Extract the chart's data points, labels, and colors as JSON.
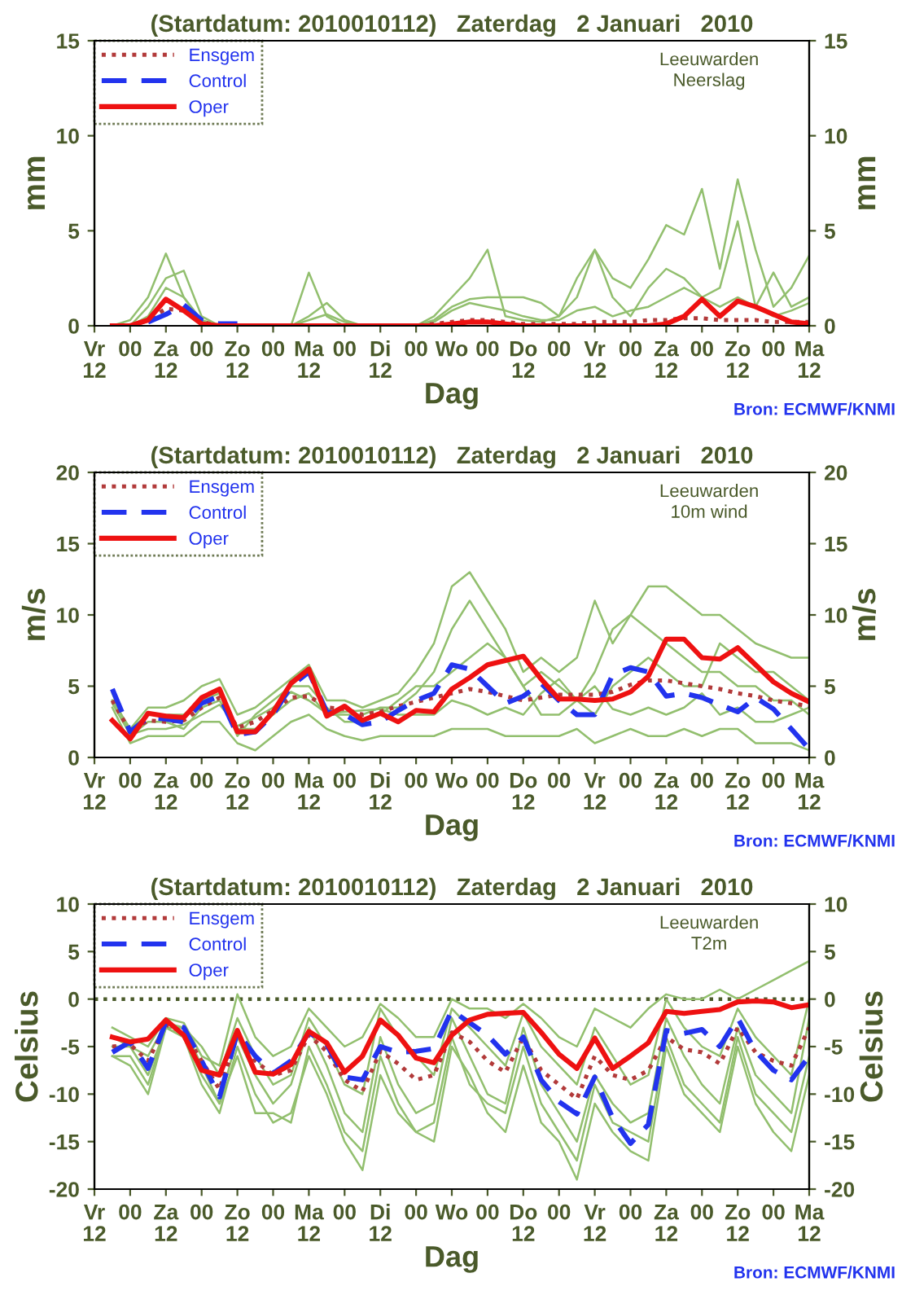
{
  "chart_data": [
    {
      "type": "line",
      "title": "(Startdatum: 2010010112)   Zaterdag   2 Januari   2010",
      "xlabel": "Dag",
      "ylabel": "mm",
      "y2label": "mm",
      "annotations": [
        "Leeuwarden\nNeerslag",
        "Bron: ECMWF/KNMI"
      ],
      "ylim": [
        0,
        15
      ],
      "yticks": [
        0,
        5,
        10,
        15
      ],
      "y2lim": [
        0,
        15
      ],
      "y2ticks": [
        0,
        5,
        10,
        15
      ],
      "categories": [
        "Vr\n12",
        null,
        "00",
        null,
        "Za\n12",
        null,
        "00",
        null,
        "Zo\n12",
        null,
        "00",
        null,
        "Ma\n12",
        null,
        "00",
        null,
        "Di\n12",
        null,
        "00",
        null,
        "Wo",
        null,
        "00",
        null,
        "Do\n12",
        null,
        "00",
        null,
        "Vr\n12",
        null,
        "00",
        null,
        "Za\n12",
        null,
        "00",
        null,
        "Zo\n12",
        null,
        "00",
        null,
        "Ma\n12"
      ],
      "legend": "top left",
      "grid": false,
      "series": [
        {
          "color": "#92bf6e",
          "line_style": "solid",
          "values": [
            null,
            0,
            0.3,
            1.5,
            3.8,
            1.5,
            0.2,
            0,
            0,
            0,
            0,
            0,
            2.8,
            0.5,
            0,
            0,
            0,
            0,
            0,
            0.5,
            1.5,
            2.5,
            4,
            0.5,
            0.3,
            0.2,
            0.5,
            2.5,
            4,
            2.5,
            2,
            3.5,
            5.3,
            4.8,
            7.2,
            3,
            7.7,
            4,
            1,
            2,
            3.7
          ]
        },
        {
          "color": "#92bf6e",
          "line_style": "solid",
          "values": [
            null,
            0,
            0,
            1,
            2.5,
            2.9,
            0.5,
            0,
            0,
            0,
            0,
            0,
            0.5,
            1.2,
            0.3,
            0,
            0,
            0,
            0,
            0.3,
            1,
            1.4,
            1.5,
            1.5,
            1.5,
            1.2,
            0.5,
            1.5,
            4,
            1.5,
            0.5,
            2,
            3,
            2.5,
            1.5,
            2,
            5.5,
            1,
            2.8,
            1,
            1.5
          ]
        },
        {
          "color": "#92bf6e",
          "line_style": "solid",
          "values": [
            null,
            0,
            0,
            0.5,
            2,
            1.5,
            0.3,
            0,
            0,
            0,
            0,
            0,
            0.3,
            0.6,
            0.2,
            0,
            0,
            0,
            0,
            0.2,
            0.8,
            1.2,
            1,
            0.8,
            0.5,
            0.3,
            0.3,
            0.8,
            1,
            0.5,
            0.8,
            1,
            1.5,
            2,
            1.5,
            1,
            1.5,
            1,
            0.5,
            0.8,
            1.2
          ]
        },
        {
          "name": "Ensgem",
          "color": "#b23a3a",
          "line_style": "dotted",
          "values": [
            null,
            0,
            0,
            0.3,
            0.9,
            0.8,
            0.2,
            0,
            0,
            0,
            0,
            0,
            0,
            0,
            0,
            0,
            0,
            0,
            0,
            0.1,
            0.2,
            0.3,
            0.3,
            0.2,
            0.1,
            0.1,
            0.1,
            0.1,
            0.2,
            0.2,
            0.2,
            0.3,
            0.3,
            0.4,
            0.4,
            0.3,
            0.3,
            0.3,
            0.2,
            0.2,
            0.2
          ]
        },
        {
          "name": "Control",
          "color": "#2233ee",
          "line_style": "dashed",
          "values": [
            null,
            null,
            null,
            0.2,
            0.6,
            1.1,
            0.3,
            0.1,
            0.1,
            null,
            null,
            null,
            null,
            null,
            null,
            null,
            null,
            null,
            null,
            null,
            null,
            null,
            null,
            null,
            null,
            null,
            null,
            null,
            null,
            null,
            null,
            null,
            null,
            null,
            null,
            null,
            null,
            null,
            null,
            null,
            null
          ]
        },
        {
          "name": "Oper",
          "color": "#ee1111",
          "line_style": "solid",
          "values": [
            null,
            0,
            0,
            0.3,
            1.4,
            0.8,
            0.1,
            0,
            0,
            0,
            0,
            0,
            0,
            0,
            0,
            0,
            0,
            0,
            0,
            0,
            0.1,
            0.2,
            0.2,
            0.1,
            0,
            0,
            0,
            0,
            0,
            0,
            0,
            0,
            0.1,
            0.5,
            1.4,
            0.5,
            1.3,
            1,
            0.6,
            0.2,
            0.1
          ]
        }
      ]
    },
    {
      "type": "line",
      "title": "(Startdatum: 2010010112)   Zaterdag   2 Januari   2010",
      "xlabel": "Dag",
      "ylabel": "m/s",
      "y2label": "m/s",
      "annotations": [
        "Leeuwarden\n10m wind",
        "Bron: ECMWF/KNMI"
      ],
      "ylim": [
        0,
        20
      ],
      "yticks": [
        0,
        5,
        10,
        15,
        20
      ],
      "y2lim": [
        0,
        20
      ],
      "y2ticks": [
        0,
        5,
        10,
        15,
        20
      ],
      "categories": [
        "Vr\n12",
        null,
        "00",
        null,
        "Za\n12",
        null,
        "00",
        null,
        "Zo\n12",
        null,
        "00",
        null,
        "Ma\n12",
        null,
        "00",
        null,
        "Di\n12",
        null,
        "00",
        null,
        "Wo",
        null,
        "00",
        null,
        "Do\n12",
        null,
        "00",
        null,
        "Vr\n12",
        null,
        "00",
        null,
        "Za\n12",
        null,
        "00",
        null,
        "Zo\n12",
        null,
        "00",
        null,
        "Ma\n12"
      ],
      "legend": "top left",
      "grid": false,
      "series": [
        {
          "color": "#92bf6e",
          "line_style": "solid",
          "values": [
            null,
            4,
            2,
            3.5,
            3.5,
            4,
            5,
            5.5,
            3,
            3.5,
            4.5,
            5.5,
            6.5,
            4,
            4,
            3.5,
            4,
            4.5,
            6,
            8,
            12,
            13,
            11,
            9,
            6,
            7,
            6,
            7,
            11,
            8,
            10,
            12,
            12,
            11,
            10,
            10,
            9,
            8,
            7.5,
            7,
            7
          ]
        },
        {
          "color": "#92bf6e",
          "line_style": "solid",
          "values": [
            null,
            3.5,
            1,
            1.5,
            1.5,
            1.5,
            2.5,
            2.5,
            1,
            0.5,
            1.5,
            2.5,
            3,
            2,
            1.5,
            1.2,
            1.5,
            1.5,
            1.5,
            1.5,
            2,
            2,
            2,
            1.5,
            1.5,
            1.5,
            1.5,
            2,
            1,
            1.5,
            2,
            1.5,
            1.5,
            2,
            1.5,
            2,
            2,
            1,
            1,
            1,
            0.5
          ]
        },
        {
          "color": "#92bf6e",
          "line_style": "solid",
          "values": [
            null,
            4.5,
            1.5,
            2.5,
            2.5,
            2,
            3.5,
            4,
            2,
            2,
            3,
            4,
            4.5,
            3,
            3,
            3,
            3.5,
            3.5,
            4.5,
            6,
            9,
            11,
            9,
            7,
            5,
            6,
            5,
            4,
            6,
            9,
            10,
            9,
            8,
            7,
            6,
            6,
            5,
            5,
            4,
            4,
            3
          ]
        },
        {
          "color": "#92bf6e",
          "line_style": "solid",
          "values": [
            null,
            4,
            2,
            3,
            3,
            3,
            4,
            4.5,
            1.5,
            3,
            4,
            5,
            5,
            3.5,
            2.5,
            2.5,
            3,
            4,
            5,
            5,
            6,
            7,
            8,
            7,
            5,
            3,
            3,
            4,
            3,
            5,
            6,
            7,
            6,
            5,
            5,
            8,
            7,
            6,
            6,
            5,
            4
          ]
        },
        {
          "color": "#92bf6e",
          "line_style": "solid",
          "values": [
            null,
            3.8,
            1.6,
            2,
            2,
            2.3,
            3,
            3.7,
            2.2,
            2.8,
            3.5,
            4.6,
            4,
            3.1,
            3.2,
            3.3,
            3.4,
            3,
            3,
            3,
            4,
            3.6,
            3,
            3.5,
            3,
            4.5,
            5.5,
            4,
            5,
            3.4,
            3,
            3.5,
            3,
            3.5,
            4.5,
            3,
            3.5,
            2.5,
            2.5,
            3,
            3.5
          ]
        },
        {
          "name": "Ensgem",
          "color": "#b23a3a",
          "line_style": "dotted",
          "values": [
            null,
            4,
            1.8,
            2.6,
            2.5,
            2.6,
            3.5,
            4.2,
            2.1,
            2.5,
            3.3,
            4.2,
            4.3,
            3.5,
            3.4,
            3,
            3.2,
            3.6,
            3.9,
            4.2,
            4.5,
            4.8,
            4.6,
            4.3,
            4,
            4.2,
            4.4,
            4.4,
            4.4,
            4.6,
            5.1,
            5.4,
            5.4,
            5.2,
            5,
            4.8,
            4.5,
            4.3,
            4,
            3.8,
            3.6
          ]
        },
        {
          "name": "Control",
          "color": "#2233ee",
          "line_style": "dashed",
          "values": [
            null,
            4.8,
            1.8,
            2.8,
            2.7,
            2.5,
            3.8,
            4.3,
            1.6,
            1.8,
            3,
            5,
            6,
            3.2,
            3,
            2.3,
            2.5,
            3.3,
            4,
            4.5,
            6.5,
            6.2,
            5,
            3.8,
            4.3,
            5.2,
            4,
            3,
            3,
            5.8,
            6.3,
            6,
            4.3,
            4.5,
            4.2,
            3.7,
            3.2,
            4.2,
            3.4,
            2,
            0.6
          ]
        },
        {
          "name": "Oper",
          "color": "#ee1111",
          "line_style": "solid",
          "values": [
            null,
            2.6,
            1.3,
            3.1,
            2.9,
            2.8,
            4.2,
            4.8,
            1.8,
            1.8,
            3.2,
            5.2,
            6.2,
            2.9,
            3.6,
            2.6,
            3.1,
            2.5,
            3.3,
            3.2,
            4.8,
            5.6,
            6.5,
            6.8,
            7.1,
            5.5,
            4.1,
            4.1,
            4,
            4.1,
            4.6,
            5.7,
            8.3,
            8.3,
            7,
            6.9,
            7.7,
            6.5,
            5.3,
            4.5,
            3.9
          ]
        }
      ]
    },
    {
      "type": "line",
      "title": "(Startdatum: 2010010112)   Zaterdag   2 Januari   2010",
      "xlabel": "Dag",
      "ylabel": "Celsius",
      "y2label": "Celsius",
      "annotations": [
        "Leeuwarden\nT2m",
        "Bron: ECMWF/KNMI"
      ],
      "ylim": [
        -20,
        10
      ],
      "yticks": [
        -20,
        -15,
        -10,
        -5,
        0,
        5,
        10
      ],
      "y2lim": [
        -20,
        10
      ],
      "y2ticks": [
        -20,
        -15,
        -10,
        -5,
        0,
        5,
        10
      ],
      "categories": [
        "Vr\n12",
        null,
        "00",
        null,
        "Za\n12",
        null,
        "00",
        null,
        "Zo\n12",
        null,
        "00",
        null,
        "Ma\n12",
        null,
        "00",
        null,
        "Di\n12",
        null,
        "00",
        null,
        "Wo",
        null,
        "00",
        null,
        "Do\n12",
        null,
        "00",
        null,
        "Vr\n12",
        null,
        "00",
        null,
        "Za\n12",
        null,
        "00",
        null,
        "Zo\n12",
        null,
        "00",
        null,
        "Ma\n12"
      ],
      "legend": "top left",
      "grid": false,
      "ref_lines": [
        {
          "axis": "y",
          "value": 0,
          "color": "#4a5a2a",
          "line_style": "dotted"
        }
      ],
      "series": [
        {
          "color": "#92bf6e",
          "line_style": "solid",
          "values": [
            null,
            -3,
            -4,
            -5,
            -2,
            -2.5,
            -6,
            -7,
            0.5,
            -4,
            -6,
            -5,
            -1,
            -3,
            -5,
            -4,
            -0.5,
            -2,
            -4,
            -4,
            0,
            -1,
            -1,
            -2,
            -0.5,
            -2,
            -4,
            -5,
            -1,
            -2,
            -3,
            -1,
            0.5,
            0,
            0,
            1,
            0,
            1,
            2,
            3,
            4
          ]
        },
        {
          "color": "#92bf6e",
          "line_style": "solid",
          "values": [
            null,
            -6,
            -7,
            -10,
            -3,
            -4,
            -9,
            -12,
            -5,
            -10,
            -13,
            -12,
            -6,
            -10,
            -15,
            -18,
            -8,
            -12,
            -14,
            -15,
            -5,
            -8,
            -12,
            -14,
            -7,
            -13,
            -15,
            -19,
            -11,
            -14,
            -16,
            -17,
            -5,
            -10,
            -12,
            -14,
            -5,
            -11,
            -14,
            -16,
            -8
          ]
        },
        {
          "color": "#92bf6e",
          "line_style": "solid",
          "values": [
            null,
            -5,
            -5,
            -8,
            -3,
            -3,
            -7,
            -11,
            -4,
            -8,
            -11,
            -9,
            -3,
            -7,
            -12,
            -14,
            -4,
            -9,
            -12,
            -11,
            -2,
            -6,
            -10,
            -11,
            -3,
            -9,
            -12,
            -15,
            -8,
            -11,
            -13,
            -12,
            -2,
            -6,
            -9,
            -11,
            -3,
            -8,
            -10,
            -12,
            -2
          ]
        },
        {
          "color": "#92bf6e",
          "line_style": "solid",
          "values": [
            null,
            -4,
            -5,
            -6,
            -2.5,
            -3,
            -5,
            -8,
            -2,
            -6,
            -9,
            -8,
            -2,
            -5,
            -9,
            -10,
            -1,
            -4,
            -6,
            -8,
            -1,
            -3,
            -5,
            -7,
            -1.5,
            -5,
            -7,
            -9,
            -3,
            -6,
            -9,
            -8,
            0,
            -3,
            -5,
            -6,
            -1,
            -4,
            -6,
            -8,
            0
          ]
        },
        {
          "color": "#92bf6e",
          "line_style": "solid",
          "values": [
            null,
            -6,
            -6,
            -9,
            -3,
            -4,
            -8,
            -11,
            -6,
            -12,
            -12,
            -13,
            -5,
            -9,
            -14,
            -16,
            -6,
            -11,
            -14,
            -13,
            -4,
            -9,
            -11,
            -12,
            -5,
            -11,
            -14,
            -17,
            -9,
            -13,
            -14,
            -15,
            -4,
            -9,
            -11,
            -13,
            -4,
            -10,
            -12,
            -14,
            -6
          ]
        },
        {
          "name": "Ensgem",
          "color": "#b23a3a",
          "line_style": "dotted",
          "values": [
            null,
            -5,
            -4.8,
            -6.5,
            -2.7,
            -3.5,
            -6.5,
            -9.5,
            -3.8,
            -6.5,
            -8,
            -7.5,
            -3.8,
            -5.5,
            -8.5,
            -9.7,
            -5.5,
            -6.8,
            -8.5,
            -8,
            -3.5,
            -4.5,
            -6.5,
            -7.7,
            -4,
            -7.5,
            -9,
            -10.5,
            -6,
            -8,
            -8.5,
            -7.5,
            -4,
            -5.3,
            -5.6,
            -6.8,
            -3,
            -5.6,
            -6.5,
            -7,
            -3
          ]
        },
        {
          "name": "Control",
          "color": "#2233ee",
          "line_style": "dashed",
          "values": [
            null,
            -5.6,
            -4.5,
            -7.3,
            -2.4,
            -3,
            -6.5,
            -10.3,
            -3.5,
            -6,
            -7.8,
            -6.5,
            -3.5,
            -4.8,
            -8.2,
            -8.5,
            -5,
            -5.6,
            -5.5,
            -5.2,
            -1.2,
            -2.5,
            -3.8,
            -5.8,
            -4,
            -8.5,
            -10.8,
            -12.1,
            -8.2,
            -12.5,
            -15.2,
            -13.2,
            -3.3,
            -3.6,
            -3.2,
            -5,
            -2,
            -5.5,
            -7.5,
            -8.5,
            -6
          ]
        },
        {
          "name": "Oper",
          "color": "#ee1111",
          "line_style": "solid",
          "values": [
            null,
            -4,
            -4.5,
            -4.2,
            -2.2,
            -3.8,
            -7.5,
            -8,
            -3.3,
            -7.7,
            -7.9,
            -6.9,
            -3.4,
            -4.6,
            -7.7,
            -6,
            -2.2,
            -3.8,
            -6.2,
            -6.7,
            -3.8,
            -2.2,
            -1.6,
            -1.5,
            -1.4,
            -3.5,
            -5.8,
            -7.3,
            -4.1,
            -7.3,
            -6,
            -4.6,
            -1.3,
            -1.5,
            -1.3,
            -1.1,
            -0.3,
            -0.2,
            -0.3,
            -0.9,
            -0.6
          ]
        }
      ]
    }
  ]
}
